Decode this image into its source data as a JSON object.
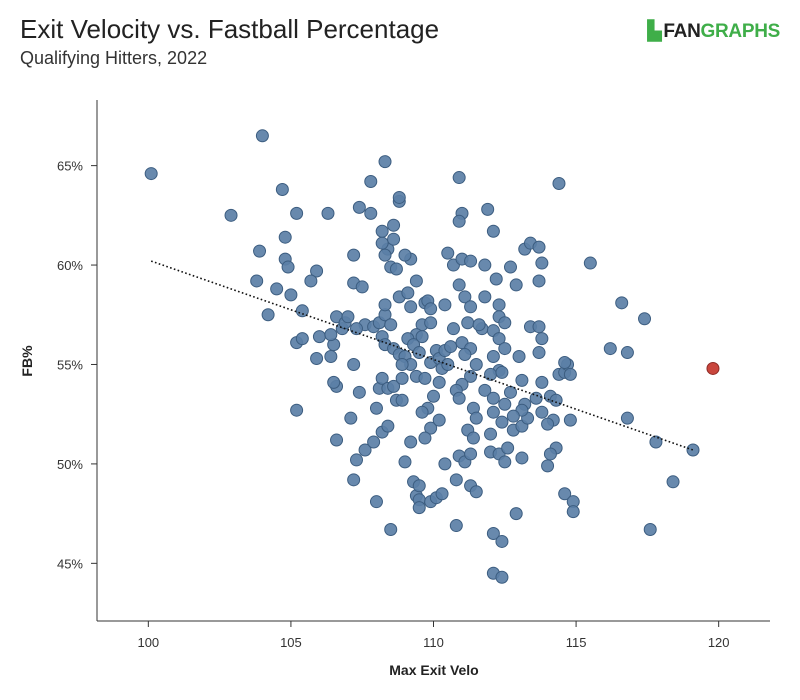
{
  "header": {
    "title": "Exit Velocity vs. Fastball Percentage",
    "subtitle": "Qualifying Hitters, 2022",
    "logo_fan": "FAN",
    "logo_graphs": "GRAPHS",
    "logo_mark": "▙"
  },
  "colors": {
    "point_fill": "#5b7fa6",
    "point_stroke": "#3c5d80",
    "highlight_fill": "#c9463d",
    "highlight_stroke": "#8e2c26",
    "trend_line": "#111111",
    "axis": "#333333",
    "logo_green": "#3fae49"
  },
  "chart_data": {
    "type": "scatter",
    "title": "Exit Velocity vs. Fastball Percentage",
    "subtitle": "Qualifying Hitters, 2022",
    "xlabel": "Max Exit Velo",
    "ylabel": "FB%",
    "xlim": [
      98.2,
      121.8
    ],
    "ylim": [
      42.1,
      68.3
    ],
    "x_ticks": [
      100,
      105,
      110,
      115,
      120
    ],
    "x_tick_labels": [
      "100",
      "105",
      "110",
      "115",
      "120"
    ],
    "y_ticks": [
      45,
      50,
      55,
      60,
      65
    ],
    "y_tick_labels": [
      "45%",
      "50%",
      "55%",
      "60%",
      "65%"
    ],
    "grid": false,
    "trendline": {
      "style": "dotted",
      "x": [
        100.1,
        119.1
      ],
      "y": [
        60.2,
        50.7
      ]
    },
    "highlight": {
      "x": 119.8,
      "y": 54.8
    },
    "points": [
      [
        100.1,
        64.6
      ],
      [
        104.0,
        66.5
      ],
      [
        102.9,
        62.5
      ],
      [
        104.7,
        63.8
      ],
      [
        105.2,
        62.6
      ],
      [
        104.8,
        61.4
      ],
      [
        103.9,
        60.7
      ],
      [
        104.8,
        60.3
      ],
      [
        104.9,
        59.9
      ],
      [
        103.8,
        59.2
      ],
      [
        104.5,
        58.8
      ],
      [
        105.0,
        58.5
      ],
      [
        104.2,
        57.5
      ],
      [
        105.4,
        57.7
      ],
      [
        105.9,
        59.7
      ],
      [
        105.7,
        59.2
      ],
      [
        106.3,
        62.6
      ],
      [
        105.2,
        56.1
      ],
      [
        105.4,
        56.3
      ],
      [
        105.9,
        55.3
      ],
      [
        105.2,
        52.7
      ],
      [
        106.0,
        56.4
      ],
      [
        106.6,
        57.4
      ],
      [
        106.8,
        56.8
      ],
      [
        106.5,
        56.0
      ],
      [
        106.9,
        57.1
      ],
      [
        106.4,
        55.4
      ],
      [
        106.4,
        56.5
      ],
      [
        106.6,
        53.9
      ],
      [
        106.5,
        54.1
      ],
      [
        106.6,
        51.2
      ],
      [
        107.1,
        52.3
      ],
      [
        107.2,
        55.0
      ],
      [
        107.4,
        53.6
      ],
      [
        107.3,
        50.2
      ],
      [
        107.2,
        49.2
      ],
      [
        107.6,
        50.7
      ],
      [
        107.9,
        51.1
      ],
      [
        108.0,
        48.1
      ],
      [
        107.2,
        59.1
      ],
      [
        107.4,
        62.9
      ],
      [
        107.8,
        62.6
      ],
      [
        107.8,
        64.2
      ],
      [
        108.3,
        65.2
      ],
      [
        107.2,
        60.5
      ],
      [
        107.5,
        58.9
      ],
      [
        107.6,
        57.0
      ],
      [
        107.3,
        56.8
      ],
      [
        107.0,
        57.4
      ],
      [
        107.9,
        56.9
      ],
      [
        108.1,
        57.1
      ],
      [
        108.2,
        56.4
      ],
      [
        108.3,
        57.5
      ],
      [
        108.5,
        57.0
      ],
      [
        108.3,
        56.0
      ],
      [
        108.1,
        53.8
      ],
      [
        108.2,
        54.3
      ],
      [
        108.4,
        53.8
      ],
      [
        108.2,
        51.6
      ],
      [
        108.4,
        51.9
      ],
      [
        108.0,
        52.8
      ],
      [
        108.7,
        53.2
      ],
      [
        108.6,
        53.9
      ],
      [
        108.9,
        53.2
      ],
      [
        108.9,
        54.3
      ],
      [
        108.6,
        55.8
      ],
      [
        108.8,
        55.5
      ],
      [
        108.5,
        46.7
      ],
      [
        109.0,
        50.1
      ],
      [
        109.2,
        51.1
      ],
      [
        109.3,
        49.1
      ],
      [
        109.4,
        48.4
      ],
      [
        109.5,
        48.2
      ],
      [
        109.5,
        47.8
      ],
      [
        109.5,
        48.9
      ],
      [
        109.9,
        48.1
      ],
      [
        110.1,
        48.3
      ],
      [
        110.3,
        48.5
      ],
      [
        108.4,
        60.8
      ],
      [
        108.3,
        60.5
      ],
      [
        108.2,
        61.1
      ],
      [
        108.2,
        61.7
      ],
      [
        108.6,
        61.3
      ],
      [
        108.6,
        62.0
      ],
      [
        108.8,
        63.2
      ],
      [
        108.8,
        63.4
      ],
      [
        109.2,
        60.3
      ],
      [
        109.0,
        60.5
      ],
      [
        108.5,
        59.9
      ],
      [
        108.7,
        59.8
      ],
      [
        108.3,
        58.0
      ],
      [
        108.8,
        58.4
      ],
      [
        109.1,
        58.6
      ],
      [
        109.4,
        59.2
      ],
      [
        109.2,
        57.9
      ],
      [
        109.7,
        58.1
      ],
      [
        109.8,
        58.2
      ],
      [
        109.9,
        57.8
      ],
      [
        109.6,
        57.0
      ],
      [
        109.9,
        57.1
      ],
      [
        109.4,
        56.5
      ],
      [
        109.1,
        56.3
      ],
      [
        109.3,
        56.0
      ],
      [
        109.5,
        55.6
      ],
      [
        109.0,
        55.4
      ],
      [
        109.2,
        55.0
      ],
      [
        109.4,
        54.4
      ],
      [
        109.7,
        54.3
      ],
      [
        109.9,
        55.1
      ],
      [
        110.1,
        55.7
      ],
      [
        110.2,
        55.3
      ],
      [
        110.3,
        54.8
      ],
      [
        110.5,
        55.0
      ],
      [
        110.4,
        55.7
      ],
      [
        110.6,
        55.9
      ],
      [
        110.2,
        54.1
      ],
      [
        110.0,
        53.4
      ],
      [
        109.8,
        52.8
      ],
      [
        109.6,
        52.6
      ],
      [
        109.9,
        51.8
      ],
      [
        109.7,
        51.3
      ],
      [
        110.2,
        52.2
      ],
      [
        110.4,
        50.0
      ],
      [
        110.9,
        50.4
      ],
      [
        111.1,
        50.1
      ],
      [
        111.3,
        50.5
      ],
      [
        110.8,
        49.2
      ],
      [
        111.3,
        48.9
      ],
      [
        111.5,
        48.6
      ],
      [
        110.8,
        46.9
      ],
      [
        112.1,
        46.5
      ],
      [
        112.4,
        46.1
      ],
      [
        112.1,
        44.5
      ],
      [
        112.4,
        44.3
      ],
      [
        112.9,
        47.5
      ],
      [
        110.5,
        60.6
      ],
      [
        110.7,
        60.0
      ],
      [
        111.0,
        60.3
      ],
      [
        111.3,
        60.2
      ],
      [
        110.9,
        59.0
      ],
      [
        111.1,
        58.4
      ],
      [
        111.3,
        57.9
      ],
      [
        111.2,
        57.1
      ],
      [
        111.7,
        56.8
      ],
      [
        111.0,
        56.1
      ],
      [
        111.3,
        55.8
      ],
      [
        111.1,
        55.5
      ],
      [
        111.5,
        55.0
      ],
      [
        111.3,
        54.4
      ],
      [
        111.0,
        54.0
      ],
      [
        110.8,
        53.7
      ],
      [
        110.9,
        53.3
      ],
      [
        111.4,
        52.8
      ],
      [
        111.5,
        52.3
      ],
      [
        111.2,
        51.7
      ],
      [
        111.4,
        51.3
      ],
      [
        110.9,
        64.4
      ],
      [
        111.0,
        62.6
      ],
      [
        110.9,
        62.2
      ],
      [
        111.9,
        62.8
      ],
      [
        112.1,
        61.7
      ],
      [
        111.8,
        60.0
      ],
      [
        112.2,
        59.3
      ],
      [
        111.8,
        58.4
      ],
      [
        112.3,
        58.0
      ],
      [
        112.3,
        57.4
      ],
      [
        112.5,
        57.1
      ],
      [
        112.1,
        56.7
      ],
      [
        112.3,
        56.3
      ],
      [
        112.5,
        55.8
      ],
      [
        112.1,
        55.4
      ],
      [
        112.3,
        54.7
      ],
      [
        112.0,
        54.5
      ],
      [
        111.8,
        53.7
      ],
      [
        112.1,
        53.3
      ],
      [
        112.5,
        53.0
      ],
      [
        112.1,
        52.6
      ],
      [
        112.4,
        52.1
      ],
      [
        112.0,
        51.5
      ],
      [
        112.0,
        50.6
      ],
      [
        112.3,
        50.5
      ],
      [
        112.5,
        50.1
      ],
      [
        112.8,
        51.7
      ],
      [
        113.1,
        51.9
      ],
      [
        113.1,
        50.3
      ],
      [
        112.6,
        50.8
      ],
      [
        112.4,
        54.6
      ],
      [
        112.7,
        53.6
      ],
      [
        113.0,
        55.4
      ],
      [
        113.1,
        54.2
      ],
      [
        113.2,
        53.0
      ],
      [
        113.6,
        53.3
      ],
      [
        113.8,
        52.6
      ],
      [
        113.3,
        52.3
      ],
      [
        113.1,
        52.7
      ],
      [
        112.8,
        52.4
      ],
      [
        112.9,
        59.0
      ],
      [
        113.2,
        60.8
      ],
      [
        112.7,
        59.9
      ],
      [
        113.4,
        61.1
      ],
      [
        113.7,
        60.9
      ],
      [
        113.8,
        60.1
      ],
      [
        113.7,
        59.2
      ],
      [
        113.4,
        56.9
      ],
      [
        113.7,
        56.9
      ],
      [
        113.8,
        56.3
      ],
      [
        113.7,
        55.6
      ],
      [
        113.8,
        54.1
      ],
      [
        114.1,
        53.4
      ],
      [
        114.2,
        52.2
      ],
      [
        114.0,
        52.0
      ],
      [
        114.3,
        53.2
      ],
      [
        114.4,
        54.5
      ],
      [
        114.6,
        54.6
      ],
      [
        114.7,
        55.0
      ],
      [
        114.8,
        54.5
      ],
      [
        114.6,
        55.1
      ],
      [
        114.8,
        52.2
      ],
      [
        114.3,
        50.8
      ],
      [
        114.1,
        50.5
      ],
      [
        114.0,
        49.9
      ],
      [
        114.6,
        48.5
      ],
      [
        114.9,
        48.1
      ],
      [
        114.9,
        47.6
      ],
      [
        114.4,
        64.1
      ],
      [
        115.5,
        60.1
      ],
      [
        116.2,
        55.8
      ],
      [
        116.6,
        58.1
      ],
      [
        116.8,
        55.6
      ],
      [
        116.8,
        52.3
      ],
      [
        117.4,
        57.3
      ],
      [
        117.6,
        46.7
      ],
      [
        117.8,
        51.1
      ],
      [
        118.4,
        49.1
      ],
      [
        119.1,
        50.7
      ],
      [
        111.6,
        57.0
      ],
      [
        110.4,
        58.0
      ],
      [
        109.6,
        56.4
      ],
      [
        110.7,
        56.8
      ],
      [
        108.9,
        55.0
      ]
    ]
  }
}
